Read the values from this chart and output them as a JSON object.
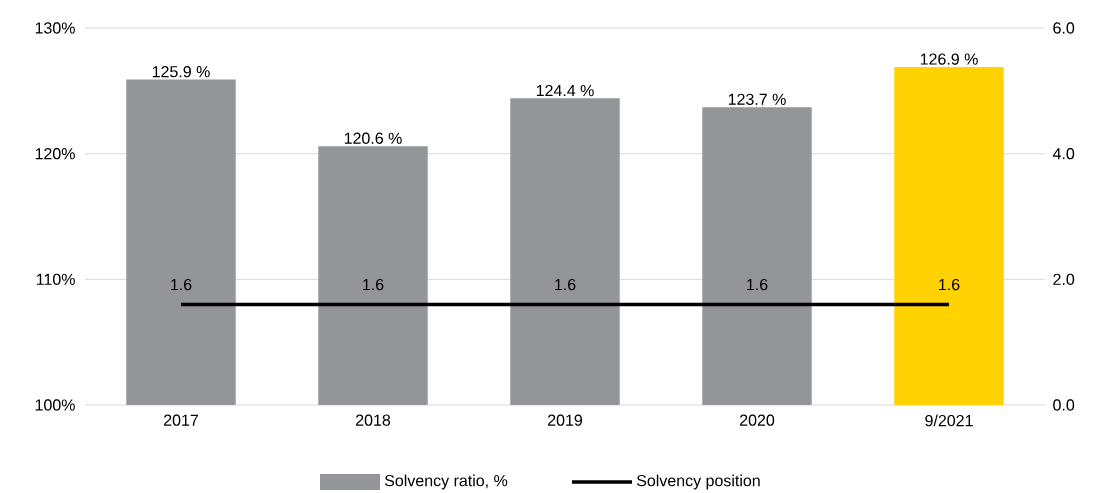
{
  "chart_data": {
    "type": "bar",
    "categories": [
      "2017",
      "2018",
      "2019",
      "2020",
      "9/2021"
    ],
    "series": [
      {
        "name": "Solvency ratio, %",
        "colors": [
          "#939598",
          "#939598",
          "#939598",
          "#939598",
          "#ffd200"
        ],
        "values": [
          125.9,
          120.6,
          124.4,
          123.7,
          126.9
        ],
        "value_labels": [
          "125.9 %",
          "120.6 %",
          "124.4 %",
          "123.7 %",
          "126.9 %"
        ]
      },
      {
        "name": "Solvency position",
        "type": "line",
        "axis": "y2",
        "color": "#000000",
        "values": [
          1.6,
          1.6,
          1.6,
          1.6,
          1.6
        ],
        "value_labels": [
          "1.6",
          "1.6",
          "1.6",
          "1.6",
          "1.6"
        ]
      }
    ],
    "ylim": [
      100,
      130
    ],
    "yticks": [
      {
        "value": 100,
        "label": "100%"
      },
      {
        "value": 110,
        "label": "110%"
      },
      {
        "value": 120,
        "label": "120%"
      },
      {
        "value": 130,
        "label": "130%"
      }
    ],
    "y2lim": [
      0,
      6
    ],
    "y2ticks": [
      {
        "value": 0,
        "label": "0.0"
      },
      {
        "value": 2,
        "label": "2.0"
      },
      {
        "value": 4,
        "label": "4.0"
      },
      {
        "value": 6,
        "label": "6.0"
      }
    ],
    "grid": "y",
    "legend": "bottom",
    "marker": "none",
    "line_style": "solid"
  }
}
